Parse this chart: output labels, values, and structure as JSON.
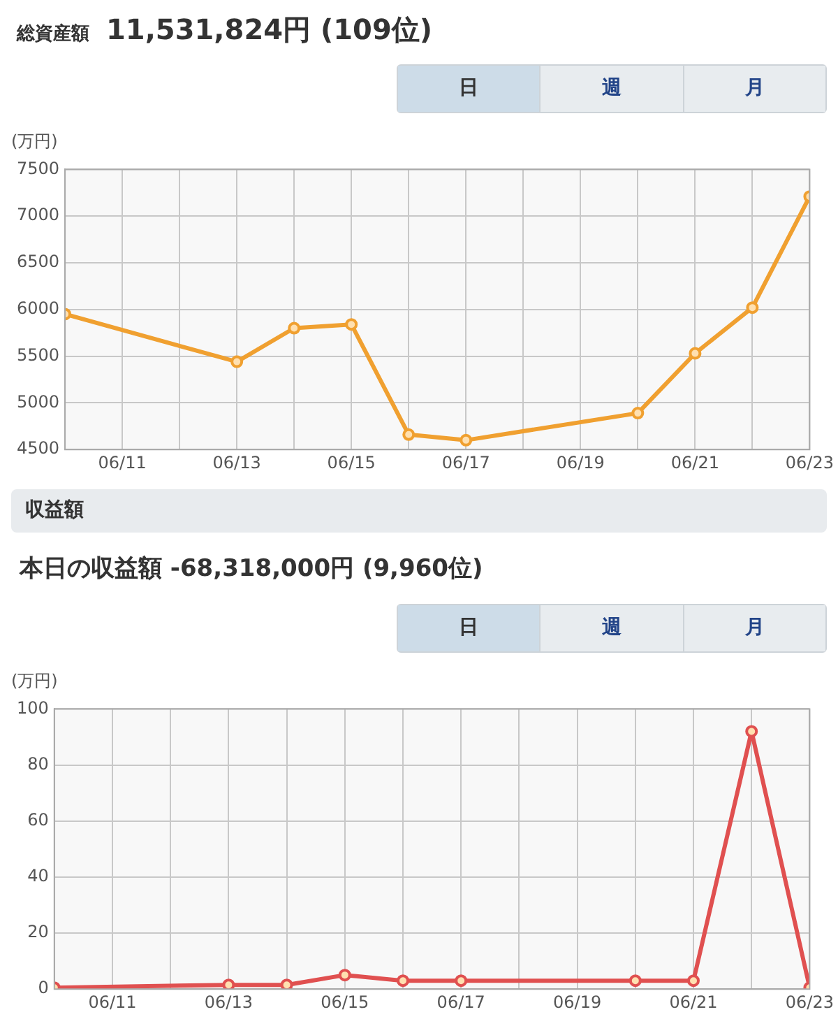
{
  "chart_data": [
    {
      "type": "line",
      "title": "総資産額",
      "subtitle": "11,531,824円 (109位)",
      "ylabel": "(万円)",
      "annotations": [
        "日",
        "週",
        "月"
      ],
      "x": [
        "--06-10",
        "--06-13",
        "--06-14",
        "--06-15",
        "--06-16",
        "--06-17",
        "--06-20",
        "--06-21",
        "--06-22",
        "--06-23"
      ],
      "series": [
        {
          "color": "#f0a030",
          "values": [
            5950,
            5440,
            5800,
            5840,
            4660,
            4600,
            4890,
            5530,
            6020,
            7210
          ]
        }
      ],
      "xlim": [
        "--06-10",
        "--06-23"
      ],
      "xticks": [
        {
          "value": "--06-10",
          "label": null
        },
        {
          "value": "--06-11",
          "label": "06/11"
        },
        {
          "value": "--06-12",
          "label": null
        },
        {
          "value": "--06-13",
          "label": "06/13"
        },
        {
          "value": "--06-14",
          "label": null
        },
        {
          "value": "--06-15",
          "label": "06/15"
        },
        {
          "value": "--06-16",
          "label": null
        },
        {
          "value": "--06-17",
          "label": "06/17"
        },
        {
          "value": "--06-18",
          "label": null
        },
        {
          "value": "--06-19",
          "label": "06/19"
        },
        {
          "value": "--06-20",
          "label": null
        },
        {
          "value": "--06-21",
          "label": "06/21"
        },
        {
          "value": "--06-22",
          "label": null
        },
        {
          "value": "--06-23",
          "label": "06/23"
        }
      ],
      "ylim": [
        4500,
        7500
      ],
      "yticks": [
        4500,
        5000,
        5500,
        6000,
        6500,
        7000,
        7500
      ],
      "grid": true,
      "legend": false,
      "marker": "circle",
      "line_style": "solid"
    },
    {
      "type": "line",
      "title": "収益額",
      "subtitle": "本日の収益額 -68,318,000円 (9,960位)",
      "ylabel": "(万円)",
      "annotations": [
        "日",
        "週",
        "月"
      ],
      "x": [
        "--06-10",
        "--06-13",
        "--06-14",
        "--06-15",
        "--06-16",
        "--06-17",
        "--06-20",
        "--06-21",
        "--06-22",
        "--06-23"
      ],
      "series": [
        {
          "color": "#e05050",
          "values": [
            0.5,
            1.5,
            1.5,
            5,
            3,
            3,
            3,
            3,
            92,
            0.5
          ]
        }
      ],
      "xlim": [
        "--06-10",
        "--06-23"
      ],
      "xticks": [
        {
          "value": "--06-10",
          "label": null
        },
        {
          "value": "--06-11",
          "label": "06/11"
        },
        {
          "value": "--06-12",
          "label": null
        },
        {
          "value": "--06-13",
          "label": "06/13"
        },
        {
          "value": "--06-14",
          "label": null
        },
        {
          "value": "--06-15",
          "label": "06/15"
        },
        {
          "value": "--06-16",
          "label": null
        },
        {
          "value": "--06-17",
          "label": "06/17"
        },
        {
          "value": "--06-18",
          "label": null
        },
        {
          "value": "--06-19",
          "label": "06/19"
        },
        {
          "value": "--06-20",
          "label": null
        },
        {
          "value": "--06-21",
          "label": "06/21"
        },
        {
          "value": "--06-22",
          "label": null
        },
        {
          "value": "--06-23",
          "label": "06/23"
        }
      ],
      "ylim": [
        0,
        100
      ],
      "yticks": [
        0,
        20,
        40,
        60,
        80,
        100
      ],
      "grid": true,
      "legend": false,
      "marker": "circle",
      "line_style": "solid"
    }
  ]
}
